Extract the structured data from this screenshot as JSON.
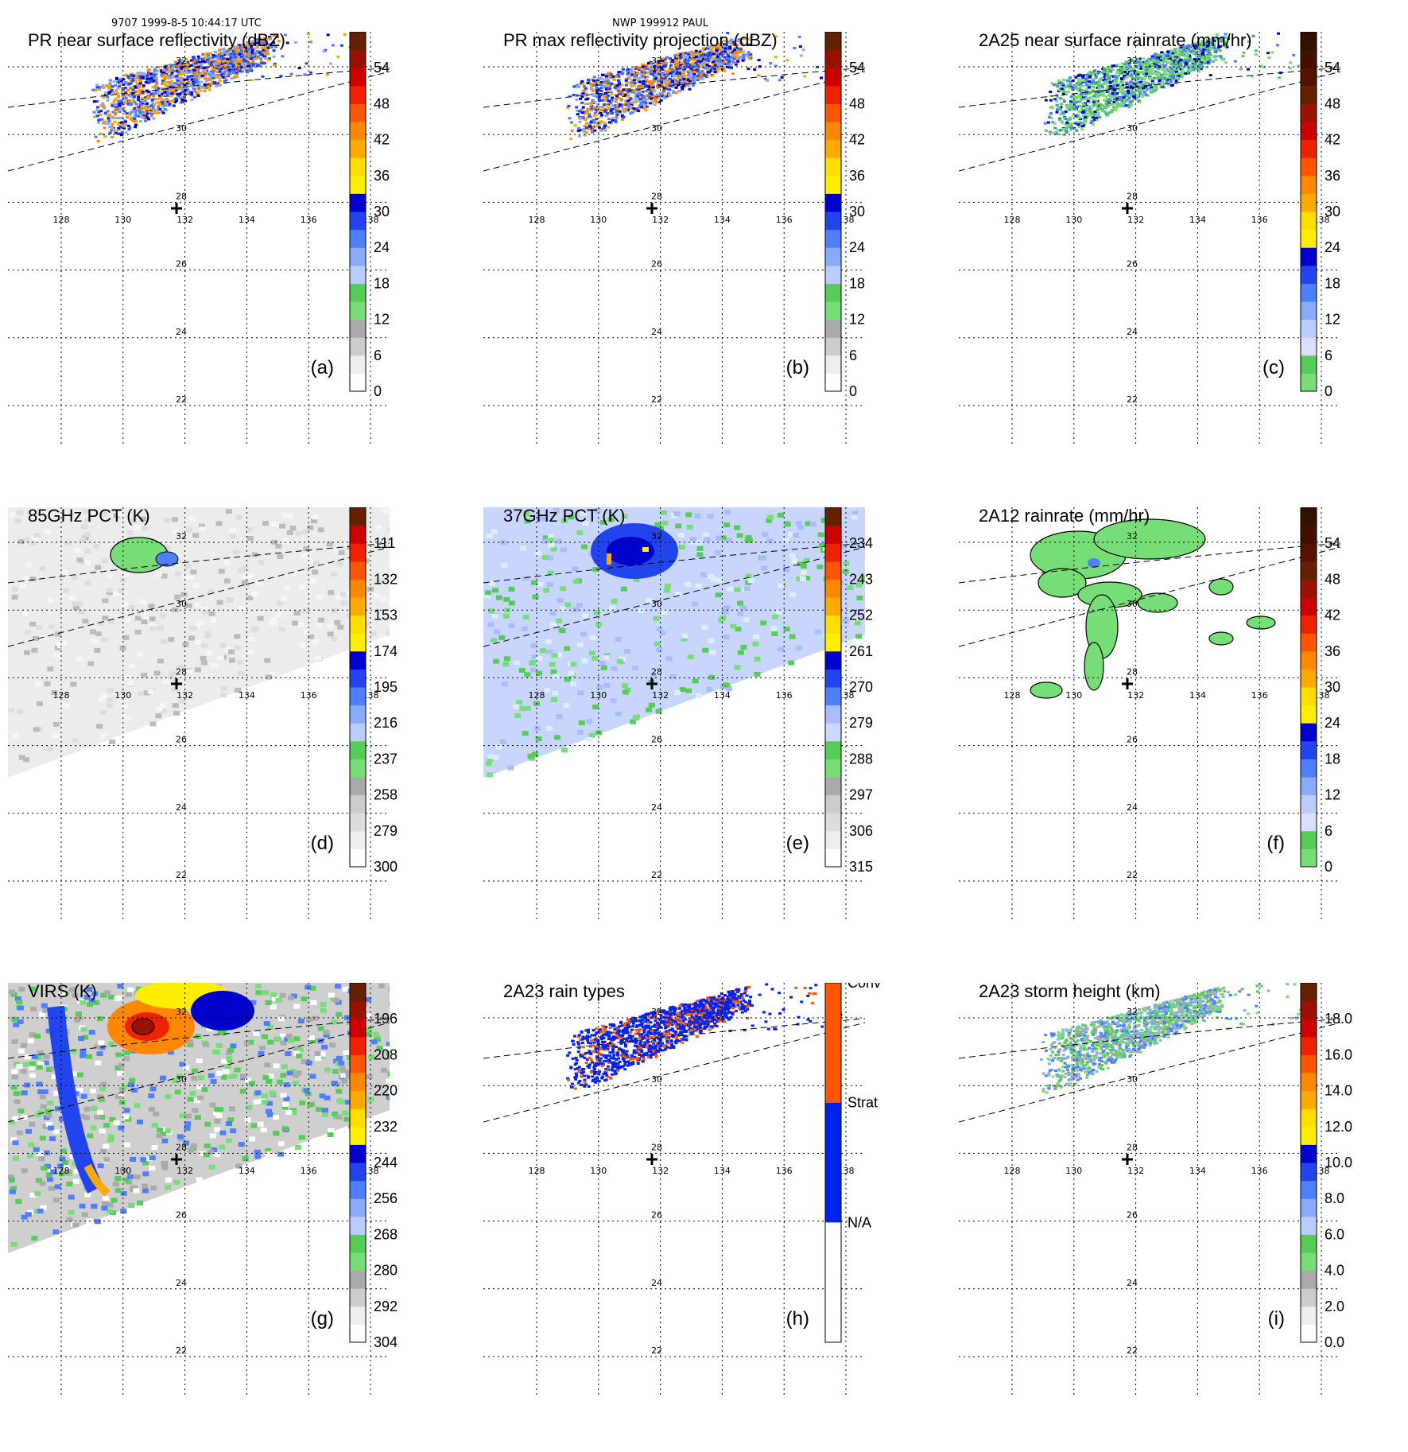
{
  "header": {
    "left": "9707 1999-8-5 10:44:17 UTC",
    "center": "NWP 199912 PAUL"
  },
  "chart_data": [
    {
      "type": "heatmap",
      "label": "(a)",
      "title": "PR near surface reflectivity (dBZ)",
      "colorbar": [
        "0",
        "6",
        "12",
        "18",
        "24",
        "30",
        "36",
        "42",
        "48",
        "54"
      ],
      "colors": [
        "#ffffff",
        "#eeeeee",
        "#cccccc",
        "#aaaaaa",
        "#77dd77",
        "#55cc55",
        "#bbccff",
        "#88aaff",
        "#4d7fff",
        "#2244ee",
        "#0000cc",
        "#ffee00",
        "#ffdd00",
        "#ffaa00",
        "#ff8800",
        "#ff5500",
        "#ee2200",
        "#cc0000",
        "#991100",
        "#662200"
      ],
      "field": "swath",
      "lon_ticks": [
        "128",
        "130",
        "132",
        "134",
        "136",
        "138"
      ],
      "lat_ticks": [
        "22",
        "24",
        "26",
        "28",
        "30",
        "32"
      ],
      "note": "Rain echoes in swath north-west of storm center"
    },
    {
      "type": "heatmap",
      "label": "(b)",
      "title": "PR max reflectivity projection (dBZ)",
      "colorbar": [
        "0",
        "6",
        "12",
        "18",
        "24",
        "30",
        "36",
        "42",
        "48",
        "54"
      ],
      "colors": [
        "#ffffff",
        "#eeeeee",
        "#cccccc",
        "#aaaaaa",
        "#77dd77",
        "#55cc55",
        "#bbccff",
        "#88aaff",
        "#4d7fff",
        "#2244ee",
        "#0000cc",
        "#ffee00",
        "#ffdd00",
        "#ffaa00",
        "#ff8800",
        "#ff5500",
        "#ee2200",
        "#cc0000",
        "#991100",
        "#662200"
      ],
      "field": "swath",
      "lon_ticks": [
        "128",
        "130",
        "132",
        "134",
        "136",
        "138"
      ],
      "lat_ticks": [
        "22",
        "24",
        "26",
        "28",
        "30",
        "32"
      ]
    },
    {
      "type": "heatmap",
      "label": "(c)",
      "title": "2A25 near surface rainrate (mm/hr)",
      "colorbar": [
        "0",
        "6",
        "12",
        "18",
        "24",
        "30",
        "36",
        "42",
        "48",
        "54"
      ],
      "colors": [
        "#77dd77",
        "#55cc55",
        "#ddddff",
        "#bbccff",
        "#88aaff",
        "#4d7fff",
        "#2244ee",
        "#0000cc",
        "#ffee00",
        "#ffdd00",
        "#ffaa00",
        "#ff8800",
        "#ff5500",
        "#ee2200",
        "#cc0000",
        "#991100",
        "#662200",
        "#551100",
        "#441100",
        "#331100"
      ],
      "field": "swath",
      "lon_ticks": [
        "128",
        "130",
        "132",
        "134",
        "136",
        "138"
      ],
      "lat_ticks": [
        "22",
        "24",
        "26",
        "28",
        "30",
        "32"
      ]
    },
    {
      "type": "heatmap",
      "label": "(d)",
      "title": "85GHz PCT (K)",
      "colorbar": [
        "300",
        "279",
        "258",
        "237",
        "216",
        "195",
        "174",
        "153",
        "132",
        "111"
      ],
      "colors": [
        "#ffffff",
        "#eeeeee",
        "#dddddd",
        "#cccccc",
        "#aaaaaa",
        "#77dd77",
        "#55cc55",
        "#bbccff",
        "#88aaff",
        "#4d7fff",
        "#2244ee",
        "#0000cc",
        "#ffee00",
        "#ffdd00",
        "#ffaa00",
        "#ff8800",
        "#ff5500",
        "#ee2200",
        "#cc0000",
        "#662200"
      ],
      "field": "tmi",
      "fill": "#ececec",
      "lon_ticks": [
        "128",
        "130",
        "132",
        "134",
        "136",
        "138"
      ],
      "lat_ticks": [
        "22",
        "24",
        "26",
        "28",
        "30",
        "32"
      ]
    },
    {
      "type": "heatmap",
      "label": "(e)",
      "title": "37GHz PCT (K)",
      "colorbar": [
        "315",
        "306",
        "297",
        "288",
        "279",
        "270",
        "261",
        "252",
        "243",
        "234"
      ],
      "colors": [
        "#ffffff",
        "#eeeeee",
        "#dddddd",
        "#cccccc",
        "#aaaaaa",
        "#77dd77",
        "#55cc55",
        "#ccd8ff",
        "#aabbff",
        "#4d7fff",
        "#2244ee",
        "#0000cc",
        "#ffee00",
        "#ffdd00",
        "#ffaa00",
        "#ff8800",
        "#ff5500",
        "#ee2200",
        "#cc0000",
        "#662200"
      ],
      "field": "tmi",
      "fill": "#c8d6ff",
      "lon_ticks": [
        "128",
        "130",
        "132",
        "134",
        "136",
        "138"
      ],
      "lat_ticks": [
        "22",
        "24",
        "26",
        "28",
        "30",
        "32"
      ]
    },
    {
      "type": "heatmap",
      "label": "(f)",
      "title": "2A12 rainrate (mm/hr)",
      "colorbar": [
        "0",
        "6",
        "12",
        "18",
        "24",
        "30",
        "36",
        "42",
        "48",
        "54"
      ],
      "colors": [
        "#77dd77",
        "#55cc55",
        "#ddddff",
        "#bbccff",
        "#88aaff",
        "#4d7fff",
        "#2244ee",
        "#0000cc",
        "#ffee00",
        "#ffdd00",
        "#ffaa00",
        "#ff8800",
        "#ff5500",
        "#ee2200",
        "#cc0000",
        "#991100",
        "#662200",
        "#551100",
        "#441100",
        "#331100"
      ],
      "field": "none",
      "lon_ticks": [
        "128",
        "130",
        "132",
        "134",
        "136",
        "138"
      ],
      "lat_ticks": [
        "22",
        "24",
        "26",
        "28",
        "30",
        "32"
      ]
    },
    {
      "type": "heatmap",
      "label": "(g)",
      "title": "VIRS",
      "title_suffix": "(K)",
      "colorbar": [
        "304",
        "292",
        "280",
        "268",
        "256",
        "244",
        "232",
        "220",
        "208",
        "196"
      ],
      "colors": [
        "#ffffff",
        "#eeeeee",
        "#cccccc",
        "#aaaaaa",
        "#77dd77",
        "#55cc55",
        "#bbccff",
        "#88aaff",
        "#4d7fff",
        "#2244ee",
        "#0000cc",
        "#ffee00",
        "#ffdd00",
        "#ffaa00",
        "#ff8800",
        "#ff5500",
        "#ee2200",
        "#cc0000",
        "#991100",
        "#662200"
      ],
      "field": "virs",
      "fill": "#cfcfcf",
      "lon_ticks": [
        "128",
        "130",
        "132",
        "134",
        "136",
        "138"
      ],
      "lat_ticks": [
        "22",
        "24",
        "26",
        "28",
        "30",
        "32"
      ]
    },
    {
      "type": "heatmap",
      "label": "(h)",
      "title": "2A23 rain types",
      "colorbar_categories": [
        "N/A",
        "Strat",
        "Conv"
      ],
      "cat_colors": [
        "#ffffff",
        "#0022ee",
        "#ff5500"
      ],
      "field": "swath",
      "lon_ticks": [
        "128",
        "130",
        "132",
        "134",
        "136",
        "138"
      ],
      "lat_ticks": [
        "22",
        "24",
        "26",
        "28",
        "30",
        "32"
      ]
    },
    {
      "type": "heatmap",
      "label": "(i)",
      "title": "2A23 storm height (km)",
      "colorbar": [
        "0.0",
        "2.0",
        "4.0",
        "6.0",
        "8.0",
        "10.0",
        "12.0",
        "14.0",
        "16.0",
        "18.0"
      ],
      "colors": [
        "#ffffff",
        "#eeeeee",
        "#cccccc",
        "#aaaaaa",
        "#77dd77",
        "#55cc55",
        "#bbccff",
        "#88aaff",
        "#4d7fff",
        "#2244ee",
        "#0000cc",
        "#ffee00",
        "#ffdd00",
        "#ffaa00",
        "#ff8800",
        "#ff5500",
        "#ee2200",
        "#cc0000",
        "#991100",
        "#662200"
      ],
      "field": "swath",
      "lon_ticks": [
        "128",
        "130",
        "132",
        "134",
        "136",
        "138"
      ],
      "lat_ticks": [
        "22",
        "24",
        "26",
        "28",
        "30",
        "32"
      ]
    }
  ]
}
